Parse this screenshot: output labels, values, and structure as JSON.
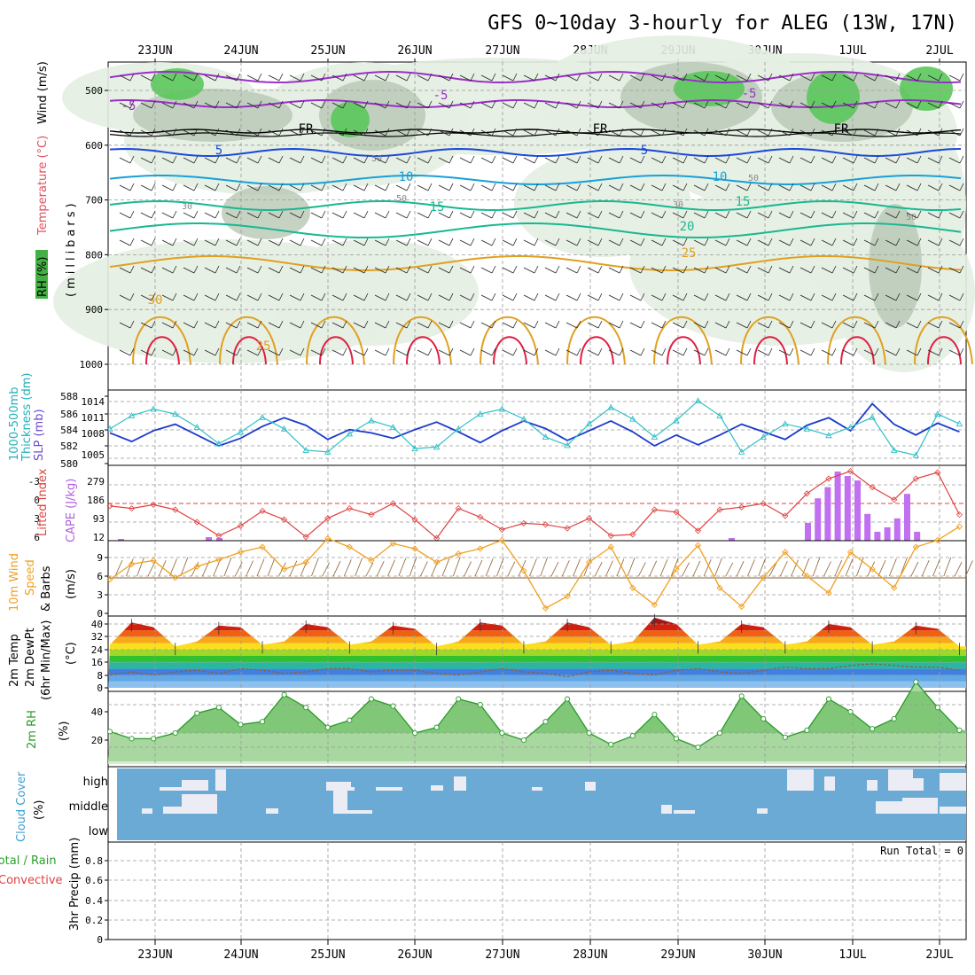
{
  "title": "GFS 0~10day 3-hourly for ALEG (13W, 17N)",
  "date_labels": [
    "23JUN",
    "24JUN",
    "25JUN",
    "26JUN",
    "27JUN",
    "28JUN",
    "29JUN",
    "30JUN",
    "1JUL",
    "2JUL"
  ],
  "colors": {
    "rh_green": "#44b044",
    "temp_purple": "#9a2ec8",
    "temp_blue": "#1a48d8",
    "temp_cyan": "#18a0d8",
    "temp_teal": "#18b890",
    "temp_orange": "#e0a020",
    "temp_red": "#e02040",
    "freezing": "#000000",
    "slp_blue": "#1a3acc",
    "thickness_cyan": "#30c0c8",
    "li_red": "#e04040",
    "cape_purple": "#c070f0",
    "wind_orange": "#f0a020",
    "barb_brown": "#8a6030",
    "cloud_blue": "#6aaad4",
    "dewpt_brown": "#9a5a30",
    "rh2m_green": "#2a9a2a"
  },
  "panels": {
    "upper_air": {
      "labels": [
        "RH (%)",
        "Temperature (°C)",
        "Wind (m/s)",
        "(millibars)"
      ],
      "y_ticks": [
        "500",
        "600",
        "700",
        "800",
        "900",
        "1000"
      ],
      "isotherm_labels": [
        "-5",
        "-5",
        "-5",
        "FR",
        "FR",
        "FR",
        "5",
        "5",
        "10",
        "10",
        "15",
        "15",
        "20",
        "25",
        "30",
        "25"
      ],
      "rh_labels": [
        "50",
        "30",
        "30",
        "50",
        "50",
        "50"
      ]
    },
    "slp_thickness": {
      "labels": [
        "1000-500mb",
        "Thickness (dm)",
        "SLP (mb)"
      ],
      "thickness_ticks": [
        "588",
        "586",
        "584",
        "582",
        "580"
      ],
      "slp_ticks": [
        "1014",
        "1011",
        "1008",
        "1005"
      ]
    },
    "li_cape": {
      "labels": [
        "Lifted Index",
        "CAPE (J/kg)"
      ],
      "li_ticks": [
        "-3",
        "0",
        "3",
        "6"
      ],
      "cape_ticks": [
        "279",
        "186",
        "93",
        "12"
      ]
    },
    "wind10m": {
      "labels": [
        "10m Wind",
        "Speed",
        "& Barbs",
        "(m/s)"
      ],
      "ticks": [
        "9",
        "6",
        "3",
        "0"
      ]
    },
    "temp2m": {
      "labels": [
        "2m Temp",
        "2m DewPt",
        "(6hr Min/Max)",
        "(°C)"
      ],
      "ticks": [
        "40",
        "32",
        "24",
        "16",
        "8",
        "0"
      ]
    },
    "rh2m": {
      "labels": [
        "2m RH",
        "(%)"
      ],
      "ticks": [
        "40",
        "20"
      ]
    },
    "cloud": {
      "labels": [
        "Cloud Cover",
        "(%)"
      ],
      "levels": [
        "high",
        "middle",
        "low"
      ]
    },
    "precip": {
      "labels": [
        "Total / Rain",
        "Convective",
        "3hr Precip (mm)"
      ],
      "ticks": [
        "0.8",
        "0.6",
        "0.4",
        "0.2",
        "0"
      ],
      "run_total": "Run Total = 0"
    }
  },
  "chart_data": [
    {
      "type": "line",
      "title": "1000-500mb Thickness (dm)",
      "x": [
        "22JUN12",
        "22JUN18",
        "23JUN00",
        "23JUN06",
        "23JUN12",
        "23JUN18",
        "24JUN00",
        "24JUN06",
        "24JUN12",
        "24JUN18",
        "25JUN00",
        "25JUN06",
        "25JUN12",
        "25JUN18",
        "26JUN00",
        "26JUN06",
        "26JUN12",
        "26JUN18",
        "27JUN00",
        "27JUN06",
        "27JUN12",
        "27JUN18",
        "28JUN00",
        "28JUN06",
        "28JUN12",
        "28JUN18",
        "29JUN00",
        "29JUN06",
        "29JUN12",
        "29JUN18",
        "30JUN00",
        "30JUN06",
        "30JUN12",
        "30JUN18",
        "1JUL00",
        "1JUL06",
        "1JUL12",
        "1JUL18",
        "2JUL00",
        "2JUL06"
      ],
      "series": [
        {
          "name": "1000-500mb Thickness (dm)",
          "values": [
            584.0,
            585.6,
            586.4,
            585.8,
            584.2,
            582.2,
            583.6,
            585.4,
            584.0,
            581.4,
            581.2,
            583.4,
            585.0,
            584.2,
            581.6,
            581.8,
            584.0,
            585.8,
            586.4,
            585.2,
            583.0,
            582.0,
            584.6,
            586.6,
            585.2,
            583.0,
            585.0,
            587.4,
            585.6,
            581.2,
            583.0,
            584.6,
            584.0,
            583.2,
            584.2,
            585.4,
            581.4,
            580.8,
            585.8,
            584.6
          ]
        },
        {
          "name": "SLP (mb)",
          "values": [
            1009.2,
            1007.6,
            1009.6,
            1010.8,
            1008.8,
            1006.8,
            1008.2,
            1010.4,
            1012.0,
            1010.6,
            1008.0,
            1009.8,
            1009.2,
            1008.2,
            1009.8,
            1011.2,
            1009.4,
            1007.4,
            1009.6,
            1011.4,
            1010.0,
            1007.8,
            1009.6,
            1011.4,
            1009.4,
            1006.8,
            1008.8,
            1007.0,
            1008.8,
            1010.8,
            1009.4,
            1008.0,
            1010.6,
            1012.0,
            1009.6,
            1014.6,
            1010.8,
            1008.8,
            1011.0,
            1009.4
          ]
        }
      ]
    },
    {
      "type": "bar",
      "title": "CAPE (J/kg) / Lifted Index",
      "x": [
        "30JUN12",
        "30JUN15",
        "30JUN18",
        "30JUN21",
        "1JUL00",
        "1JUL03",
        "1JUL06",
        "1JUL09",
        "1JUL12",
        "1JUL15",
        "1JUL18",
        "1JUL21"
      ],
      "series": [
        {
          "name": "CAPE (J/kg)",
          "values": [
            80,
            190,
            240,
            310,
            290,
            270,
            120,
            40,
            60,
            100,
            210,
            40
          ]
        }
      ],
      "li_values": [
        0.2,
        0.4,
        0.1,
        0.5,
        1.5,
        2.6,
        1.8,
        0.6,
        1.3,
        2.7,
        1.2,
        0.4,
        0.9,
        0.0,
        1.3,
        2.8,
        0.4,
        1.1,
        2.1,
        1.6,
        1.7,
        2.0,
        1.2,
        2.6,
        2.5,
        0.5,
        0.7,
        2.2,
        0.5,
        0.3,
        0.0,
        1.0,
        -0.8,
        -2.0,
        -2.6,
        -1.3,
        -0.3,
        -2.0,
        -2.5,
        0.9
      ]
    },
    {
      "type": "line",
      "title": "10m Wind Speed (m/s)",
      "x_start": "22JUN12",
      "x_step_hours": 6,
      "series": [
        {
          "name": "10m Wind Speed (m/s)",
          "values": [
            4.0,
            5.8,
            6.2,
            4.2,
            5.5,
            6.3,
            7.2,
            7.8,
            5.2,
            6.0,
            8.8,
            7.8,
            6.2,
            8.2,
            7.6,
            6.0,
            7.0,
            7.6,
            8.6,
            5.0,
            0.6,
            2.0,
            6.0,
            7.8,
            3.0,
            1.0,
            5.2,
            8.0,
            3.0,
            0.8,
            4.2,
            7.2,
            4.4,
            2.4,
            7.2,
            5.2,
            3.0,
            7.8,
            8.6,
            10.2
          ]
        }
      ]
    },
    {
      "type": "area",
      "title": "2m Temp / 2m DewPt (°C)",
      "x_start": "22JUN12",
      "x_step_hours": 6,
      "series": [
        {
          "name": "2m Temp",
          "values": [
            27,
            41,
            38,
            26,
            29,
            39,
            38,
            27,
            29,
            40,
            38,
            27,
            29,
            39,
            37,
            26,
            29,
            41,
            39,
            27,
            29,
            41,
            38,
            27,
            29,
            44,
            40,
            27,
            29,
            40,
            38,
            27,
            29,
            40,
            38,
            27,
            29,
            39,
            37,
            26
          ]
        },
        {
          "name": "2m DewPt",
          "values": [
            8,
            10,
            8,
            10,
            11,
            9,
            12,
            11,
            9,
            10,
            12,
            12,
            10,
            11,
            11,
            9,
            8,
            10,
            12,
            10,
            9,
            7,
            10,
            11,
            9,
            8,
            11,
            12,
            10,
            9,
            11,
            13,
            12,
            12,
            14,
            15,
            14,
            13,
            13,
            11
          ]
        }
      ]
    },
    {
      "type": "area",
      "title": "2m RH (%)",
      "x_start": "22JUN12",
      "x_step_hours": 6,
      "series": [
        {
          "name": "2m RH (%)",
          "values": [
            21,
            16,
            16,
            20,
            34,
            38,
            26,
            28,
            47,
            38,
            24,
            29,
            44,
            39,
            20,
            24,
            44,
            40,
            20,
            15,
            28,
            44,
            20,
            12,
            18,
            33,
            16,
            10,
            20,
            46,
            30,
            17,
            22,
            44,
            35,
            23,
            30,
            56,
            38,
            22
          ]
        }
      ]
    }
  ]
}
